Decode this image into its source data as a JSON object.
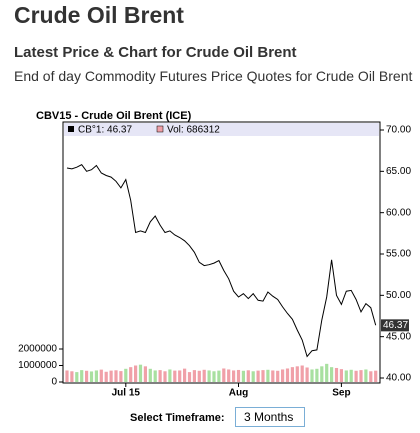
{
  "header": {
    "title": "Crude Oil Brent",
    "subtitle": "Latest Price & Chart for Crude Oil Brent",
    "description": "End of day Commodity Futures Price Quotes for Crude Oil Brent"
  },
  "chart_data": {
    "type": "line",
    "title": "CBV15 - Crude Oil Brent (ICE)",
    "categories": [
      null,
      null,
      null,
      null,
      null,
      null,
      null,
      null,
      null,
      null,
      null,
      null,
      "Jul 15",
      null,
      null,
      null,
      null,
      null,
      null,
      null,
      null,
      null,
      null,
      null,
      null,
      null,
      null,
      null,
      null,
      null,
      null,
      null,
      null,
      null,
      null,
      "Aug",
      null,
      null,
      null,
      null,
      null,
      null,
      null,
      null,
      null,
      null,
      null,
      null,
      null,
      null,
      null,
      null,
      null,
      null,
      null,
      null,
      "Sep",
      null,
      null,
      null,
      null,
      null,
      null,
      null
    ],
    "series": [
      {
        "name": "CB°1: 46.37",
        "color": "#000000",
        "values": [
          65.4,
          65.3,
          65.5,
          65.8,
          65.0,
          65.2,
          65.7,
          64.8,
          64.5,
          64.3,
          63.8,
          63.0,
          64.0,
          61.5,
          57.6,
          57.8,
          57.6,
          58.9,
          59.6,
          58.5,
          57.6,
          57.8,
          57.3,
          57.0,
          56.6,
          56.0,
          55.2,
          54.0,
          53.6,
          53.7,
          53.9,
          54.2,
          53.0,
          52.0,
          50.5,
          49.8,
          50.2,
          49.6,
          50.2,
          49.4,
          49.3,
          50.4,
          49.9,
          49.5,
          48.6,
          47.8,
          47.1,
          45.8,
          44.6,
          42.6,
          43.3,
          43.4,
          47.0,
          49.8,
          54.3,
          50.0,
          48.9,
          50.5,
          50.6,
          49.5,
          48.0,
          49.0,
          48.5,
          46.37
        ]
      },
      {
        "name": "Vol: 686312",
        "type": "bar",
        "axis": "y2",
        "color": "#f0a0a8",
        "up_color": "#a8e0a0",
        "values": [
          700000,
          650000,
          600000,
          720000,
          680000,
          640000,
          700000,
          750000,
          620000,
          690000,
          710000,
          660000,
          800000,
          900000,
          1000000,
          1050000,
          950000,
          800000,
          700000,
          720000,
          650000,
          760000,
          690000,
          700000,
          810000,
          600000,
          720000,
          680000,
          740000,
          700000,
          650000,
          690000,
          820000,
          760000,
          700000,
          730000,
          680000,
          710000,
          650000,
          690000,
          720000,
          740000,
          700000,
          680000,
          760000,
          820000,
          900000,
          950000,
          1000000,
          880000,
          760000,
          800000,
          950000,
          1100000,
          900000,
          850000,
          780000,
          700000,
          740000,
          680000,
          720000,
          760000,
          650000,
          686312
        ]
      }
    ],
    "last_price_label": "46.37",
    "ylim": [
      40,
      70
    ],
    "yticks": [
      {
        "value": 40,
        "label": "40.00"
      },
      {
        "value": 45,
        "label": "45.00"
      },
      {
        "value": 50,
        "label": "50.00"
      },
      {
        "value": 55,
        "label": "55.00"
      },
      {
        "value": 60,
        "label": "60.00"
      },
      {
        "value": 65,
        "label": "65.00"
      },
      {
        "value": 70,
        "label": "70.00"
      }
    ],
    "y2lim": [
      0,
      2000000
    ],
    "y2ticks": [
      0,
      1000000,
      2000000
    ]
  },
  "controls": {
    "timeframe_label": "Select Timeframe:",
    "timeframe_value": "3 Months"
  }
}
